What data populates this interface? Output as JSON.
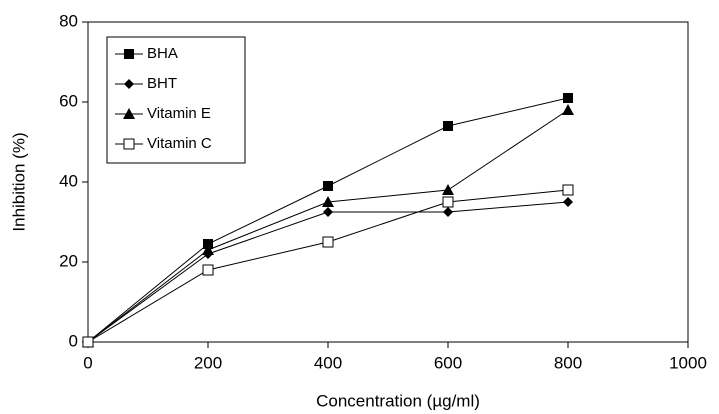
{
  "chart_data": {
    "type": "line",
    "x_label": "Concentration (µg/ml)",
    "y_label": "Inhibition (%)",
    "x": [
      0,
      200,
      400,
      600,
      800
    ],
    "series": [
      {
        "name": "BHA",
        "color": "#000000",
        "marker": "square",
        "values": [
          0,
          24.5,
          39,
          54,
          61
        ]
      },
      {
        "name": "BHT",
        "color": "#000000",
        "marker": "diamond",
        "values": [
          0,
          22,
          32.5,
          32.5,
          35
        ]
      },
      {
        "name": "Vitamin E",
        "color": "#000000",
        "marker": "triangle",
        "values": [
          0,
          23,
          35,
          38,
          58
        ]
      },
      {
        "name": "Vitamin C",
        "color": "#000000",
        "marker": "open-square",
        "values": [
          0,
          18,
          25,
          35,
          38
        ]
      }
    ],
    "xlim": [
      0,
      1000
    ],
    "xticks": [
      0,
      200,
      400,
      600,
      800,
      1000
    ],
    "ylim": [
      0,
      80
    ],
    "yticks": [
      0,
      20,
      40,
      60,
      80
    ],
    "grid": false,
    "legend": "upper-left"
  }
}
